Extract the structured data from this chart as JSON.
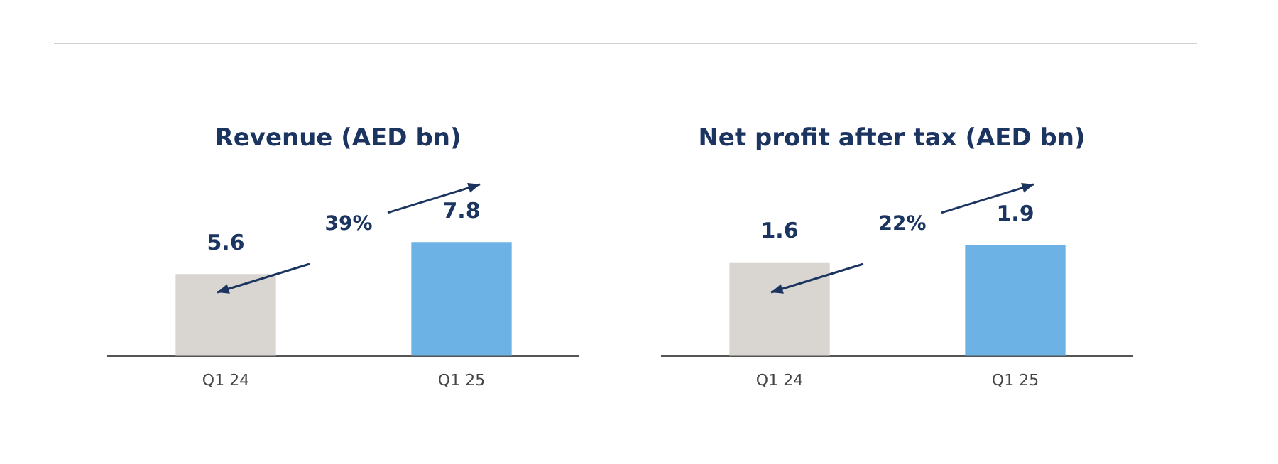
{
  "chart_data": [
    {
      "type": "bar",
      "title": "Revenue (AED bn)",
      "categories": [
        "Q1 24",
        "Q1 25"
      ],
      "values": [
        5.6,
        7.8
      ],
      "colors": [
        "#d9d5d0",
        "#6cb2e4"
      ],
      "data_labels": true,
      "annotations": [
        "39%"
      ]
    },
    {
      "type": "bar",
      "title": "Net profit after tax (AED bn)",
      "categories": [
        "Q1 24",
        "Q1 25"
      ],
      "values": [
        1.6,
        1.9
      ],
      "colors": [
        "#d9d5d0",
        "#6cb2e4"
      ],
      "data_labels": true,
      "annotations": [
        "22%"
      ]
    }
  ]
}
